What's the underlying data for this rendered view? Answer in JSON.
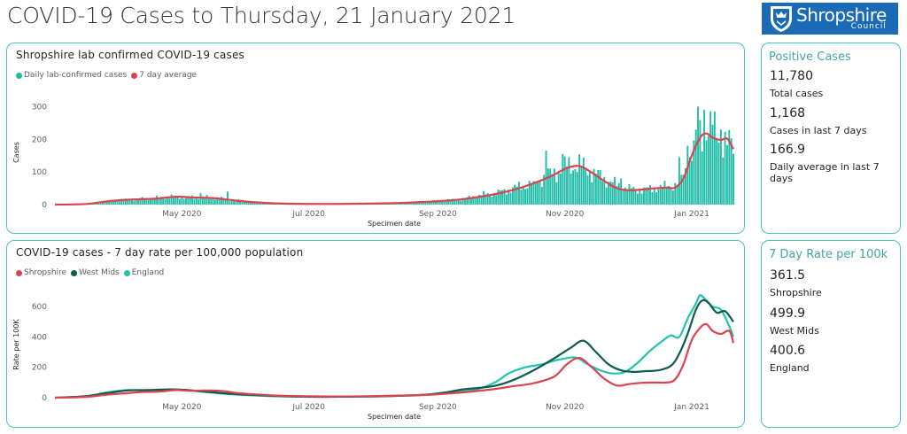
{
  "header": {
    "title": "COVID-19 Cases to Thursday, 21 January 2021",
    "logo_main": "Shropshire",
    "logo_sub": "Council"
  },
  "colors": {
    "border": "#45c3b8",
    "teal": "#1fbba6",
    "red": "#d9444f",
    "dark_green": "#0b5c4e",
    "bright_teal": "#22c2ad",
    "side_title": "#40a79e",
    "logo_bg": "#1a6ab5"
  },
  "positive_cases": {
    "title": "Positive Cases",
    "stats": [
      {
        "value": "11,780",
        "label": "Total cases"
      },
      {
        "value": "1,168",
        "label": "Cases in last 7 days"
      },
      {
        "value": "166.9",
        "label": "Daily average in last 7 days"
      }
    ]
  },
  "rate_panel": {
    "title": "7 Day Rate per 100k",
    "stats": [
      {
        "value": "361.5",
        "label": "Shropshire"
      },
      {
        "value": "499.9",
        "label": "West Mids"
      },
      {
        "value": "400.6",
        "label": "England"
      }
    ]
  },
  "chart_data": [
    {
      "type": "bar",
      "title": "Shropshire lab confirmed COVID-19 cases",
      "xlabel": "Specimen date",
      "ylabel": "Cases",
      "ylim": [
        0,
        320
      ],
      "yticks": [
        0,
        100,
        200,
        300
      ],
      "xticks": [
        {
          "label": "May 2020",
          "day": 61
        },
        {
          "label": "Jul 2020",
          "day": 122
        },
        {
          "label": "Sep 2020",
          "day": 184
        },
        {
          "label": "Nov 2020",
          "day": 245
        },
        {
          "label": "Jan 2021",
          "day": 306
        }
      ],
      "x_start": "2020-03-01",
      "x_end": "2021-01-21",
      "legend": [
        {
          "name": "Daily lab-confirmed cases",
          "color": "#1fbba6"
        },
        {
          "name": "7 day average",
          "color": "#d9444f"
        }
      ],
      "legend_position": "top-left",
      "grid": false,
      "series": [
        {
          "name": "Daily lab-confirmed cases",
          "kind": "bar",
          "anchors": [
            [
              0,
              0
            ],
            [
              12,
              1
            ],
            [
              20,
              5
            ],
            [
              28,
              12
            ],
            [
              38,
              17
            ],
            [
              48,
              20
            ],
            [
              58,
              25
            ],
            [
              66,
              22
            ],
            [
              76,
              22
            ],
            [
              86,
              14
            ],
            [
              96,
              8
            ],
            [
              110,
              4
            ],
            [
              130,
              2
            ],
            [
              150,
              3
            ],
            [
              165,
              5
            ],
            [
              180,
              10
            ],
            [
              190,
              14
            ],
            [
              198,
              20
            ],
            [
              205,
              30
            ],
            [
              212,
              35
            ],
            [
              220,
              50
            ],
            [
              228,
              62
            ],
            [
              234,
              80
            ],
            [
              240,
              100
            ],
            [
              246,
              118
            ],
            [
              252,
              122
            ],
            [
              258,
              100
            ],
            [
              264,
              80
            ],
            [
              270,
              60
            ],
            [
              276,
              48
            ],
            [
              282,
              45
            ],
            [
              288,
              50
            ],
            [
              294,
              55
            ],
            [
              298,
              60
            ],
            [
              302,
              90
            ],
            [
              306,
              160
            ],
            [
              310,
              215
            ],
            [
              313,
              235
            ],
            [
              316,
              225
            ],
            [
              320,
              210
            ],
            [
              322,
              190
            ],
            [
              326,
              175
            ],
            [
              326.5,
              108
            ]
          ],
          "spikes": [
            [
              70,
              35
            ],
            [
              83,
              40
            ],
            [
              230,
              72
            ],
            [
              236,
              165
            ],
            [
              244,
              155
            ],
            [
              272,
              80
            ],
            [
              300,
              145
            ],
            [
              304,
              180
            ],
            [
              309,
              300
            ],
            [
              312,
              290
            ],
            [
              316,
              245
            ],
            [
              320,
              230
            ]
          ]
        },
        {
          "name": "7 day average",
          "kind": "line",
          "points": [
            [
              0,
              0
            ],
            [
              15,
              2
            ],
            [
              25,
              10
            ],
            [
              35,
              15
            ],
            [
              48,
              18
            ],
            [
              58,
              24
            ],
            [
              66,
              22
            ],
            [
              76,
              20
            ],
            [
              86,
              13
            ],
            [
              96,
              7
            ],
            [
              110,
              3
            ],
            [
              130,
              2
            ],
            [
              150,
              3
            ],
            [
              165,
              5
            ],
            [
              180,
              9
            ],
            [
              192,
              14
            ],
            [
              200,
              20
            ],
            [
              208,
              28
            ],
            [
              216,
              38
            ],
            [
              224,
              52
            ],
            [
              232,
              70
            ],
            [
              240,
              92
            ],
            [
              246,
              112
            ],
            [
              252,
              118
            ],
            [
              258,
              98
            ],
            [
              264,
              72
            ],
            [
              270,
              50
            ],
            [
              276,
              44
            ],
            [
              282,
              46
            ],
            [
              288,
              50
            ],
            [
              294,
              52
            ],
            [
              298,
              52
            ],
            [
              302,
              80
            ],
            [
              306,
              150
            ],
            [
              310,
              205
            ],
            [
              313,
              218
            ],
            [
              316,
              205
            ],
            [
              320,
              198
            ],
            [
              323,
              202
            ],
            [
              326,
              170
            ]
          ]
        }
      ]
    },
    {
      "type": "line",
      "title": "COVID-19 cases - 7 day rate per 100,000 population",
      "xlabel": "Specimen date",
      "ylabel": "Rate per 100K",
      "ylim": [
        0,
        700
      ],
      "yticks": [
        0,
        200,
        400,
        600
      ],
      "xticks": [
        {
          "label": "May 2020",
          "day": 61
        },
        {
          "label": "Jul 2020",
          "day": 122
        },
        {
          "label": "Sep 2020",
          "day": 184
        },
        {
          "label": "Nov 2020",
          "day": 245
        },
        {
          "label": "Jan 2021",
          "day": 306
        }
      ],
      "x_start": "2020-03-01",
      "x_end": "2021-01-21",
      "legend_position": "top-left",
      "grid": false,
      "series": [
        {
          "name": "Shropshire",
          "color": "#d9444f",
          "points": [
            [
              0,
              0
            ],
            [
              15,
              5
            ],
            [
              25,
              20
            ],
            [
              35,
              30
            ],
            [
              42,
              38
            ],
            [
              50,
              40
            ],
            [
              58,
              50
            ],
            [
              65,
              45
            ],
            [
              72,
              48
            ],
            [
              80,
              45
            ],
            [
              88,
              30
            ],
            [
              96,
              22
            ],
            [
              110,
              12
            ],
            [
              130,
              8
            ],
            [
              150,
              10
            ],
            [
              165,
              14
            ],
            [
              180,
              20
            ],
            [
              190,
              28
            ],
            [
              200,
              40
            ],
            [
              210,
              55
            ],
            [
              220,
              75
            ],
            [
              230,
              95
            ],
            [
              240,
              140
            ],
            [
              246,
              220
            ],
            [
              252,
              262
            ],
            [
              258,
              200
            ],
            [
              264,
              125
            ],
            [
              270,
              80
            ],
            [
              276,
              90
            ],
            [
              282,
              98
            ],
            [
              288,
              100
            ],
            [
              294,
              100
            ],
            [
              298,
              120
            ],
            [
              302,
              220
            ],
            [
              306,
              380
            ],
            [
              310,
              460
            ],
            [
              313,
              485
            ],
            [
              316,
              440
            ],
            [
              320,
              420
            ],
            [
              324,
              440
            ],
            [
              326,
              360
            ]
          ]
        },
        {
          "name": "West Mids",
          "color": "#0b5c4e",
          "points": [
            [
              0,
              0
            ],
            [
              15,
              10
            ],
            [
              25,
              30
            ],
            [
              35,
              48
            ],
            [
              45,
              50
            ],
            [
              55,
              55
            ],
            [
              62,
              52
            ],
            [
              72,
              40
            ],
            [
              85,
              25
            ],
            [
              100,
              15
            ],
            [
              115,
              8
            ],
            [
              130,
              6
            ],
            [
              150,
              8
            ],
            [
              165,
              12
            ],
            [
              178,
              20
            ],
            [
              188,
              35
            ],
            [
              196,
              55
            ],
            [
              204,
              65
            ],
            [
              212,
              80
            ],
            [
              220,
              115
            ],
            [
              230,
              180
            ],
            [
              240,
              260
            ],
            [
              248,
              330
            ],
            [
              254,
              375
            ],
            [
              260,
              300
            ],
            [
              266,
              220
            ],
            [
              272,
              180
            ],
            [
              278,
              170
            ],
            [
              284,
              175
            ],
            [
              290,
              180
            ],
            [
              296,
              210
            ],
            [
              300,
              290
            ],
            [
              304,
              420
            ],
            [
              308,
              580
            ],
            [
              311,
              640
            ],
            [
              314,
              625
            ],
            [
              318,
              560
            ],
            [
              322,
              570
            ],
            [
              326,
              499.9
            ]
          ]
        },
        {
          "name": "England",
          "color": "#22c2ad",
          "points": [
            [
              0,
              0
            ],
            [
              15,
              10
            ],
            [
              25,
              35
            ],
            [
              35,
              50
            ],
            [
              45,
              48
            ],
            [
              55,
              52
            ],
            [
              62,
              50
            ],
            [
              72,
              38
            ],
            [
              85,
              22
            ],
            [
              100,
              12
            ],
            [
              115,
              7
            ],
            [
              130,
              6
            ],
            [
              150,
              8
            ],
            [
              165,
              12
            ],
            [
              178,
              18
            ],
            [
              188,
              28
            ],
            [
              196,
              42
            ],
            [
              204,
              60
            ],
            [
              212,
              105
            ],
            [
              218,
              160
            ],
            [
              226,
              200
            ],
            [
              234,
              220
            ],
            [
              242,
              250
            ],
            [
              250,
              265
            ],
            [
              256,
              220
            ],
            [
              262,
              180
            ],
            [
              268,
              160
            ],
            [
              274,
              170
            ],
            [
              280,
              230
            ],
            [
              286,
              310
            ],
            [
              292,
              375
            ],
            [
              296,
              410
            ],
            [
              300,
              400
            ],
            [
              304,
              520
            ],
            [
              308,
              620
            ],
            [
              310,
              675
            ],
            [
              313,
              640
            ],
            [
              316,
              600
            ],
            [
              320,
              580
            ],
            [
              324,
              470
            ],
            [
              326,
              400.6
            ]
          ]
        }
      ]
    }
  ]
}
